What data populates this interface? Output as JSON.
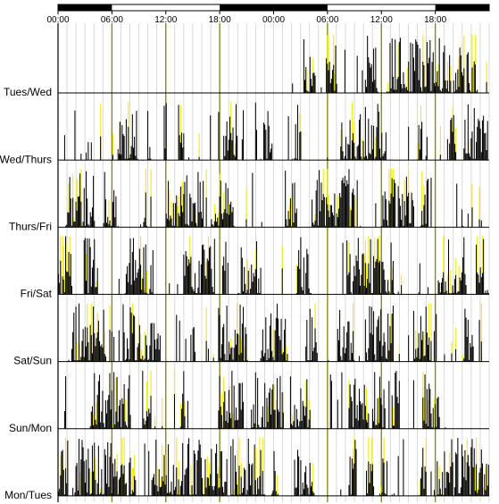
{
  "chart_data": {
    "type": "bar",
    "subtype": "double-plotted actogram",
    "x_ticks": [
      "00:00",
      "06:00",
      "12:00",
      "18:00",
      "00:00",
      "06:00",
      "12:00",
      "18:00"
    ],
    "x_range_hours": [
      0,
      48
    ],
    "light_dark_bar": {
      "dark_hours": [
        [
          0,
          6
        ],
        [
          18,
          30
        ],
        [
          42,
          48
        ]
      ],
      "light_hours": [
        [
          6,
          18
        ],
        [
          30,
          42
        ]
      ]
    },
    "rows": [
      "Tues/Wed",
      "Wed/Thurs",
      "Thurs/Fri",
      "Fri/Sat",
      "Sat/Sun",
      "Sun/Mon",
      "Mon/Tues"
    ],
    "series": [
      {
        "name": "",
        "color": "#000000"
      },
      {
        "name": "",
        "color": "#f2ea1a"
      }
    ],
    "reference_lines_hours": [
      6,
      12,
      18,
      30,
      36,
      42
    ],
    "grid": "vertical every hour"
  }
}
